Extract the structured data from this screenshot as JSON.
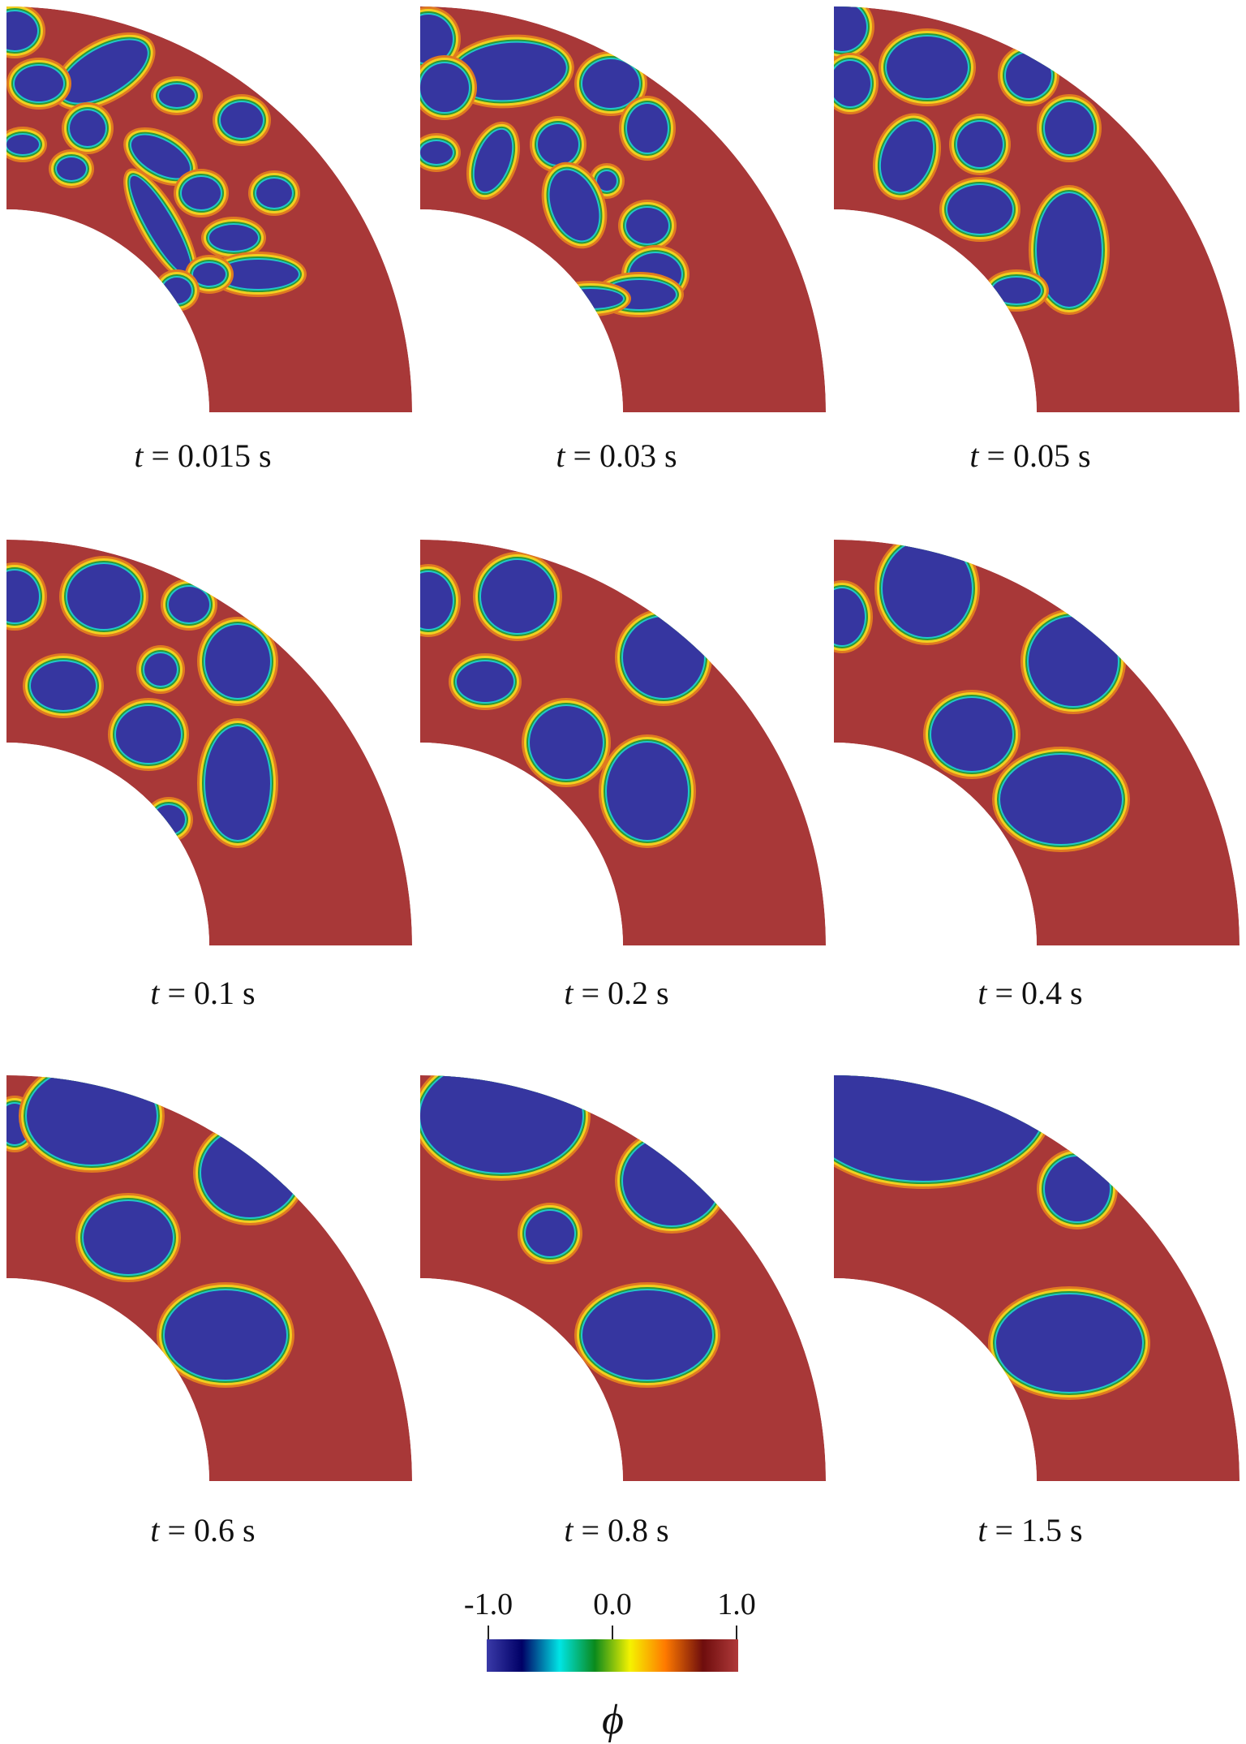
{
  "panels": [
    {
      "time": "0.015",
      "unit": "s"
    },
    {
      "time": "0.03",
      "unit": "s"
    },
    {
      "time": "0.05",
      "unit": "s"
    },
    {
      "time": "0.1",
      "unit": "s"
    },
    {
      "time": "0.2",
      "unit": "s"
    },
    {
      "time": "0.4",
      "unit": "s"
    },
    {
      "time": "0.6",
      "unit": "s"
    },
    {
      "time": "0.8",
      "unit": "s"
    },
    {
      "time": "1.5",
      "unit": "s"
    }
  ],
  "time_symbol": "t",
  "equals": "=",
  "colorbar": {
    "symbol": "ϕ",
    "tick_labels": [
      "-1.0",
      "0.0",
      "1.0"
    ],
    "colors": [
      "#3a3aa8",
      "#000066",
      "#00e5e5",
      "#0b8a1c",
      "#f5f200",
      "#ff7a00",
      "#6e0d0d",
      "#b03a3a"
    ]
  },
  "colors": {
    "matrix": "#a83838",
    "droplet": "#3636a0",
    "rim_cyan": "#1fc8c8",
    "rim_green": "#2a9a36",
    "rim_yellow": "#f0d020",
    "rim_orange": "#e07a20"
  }
}
